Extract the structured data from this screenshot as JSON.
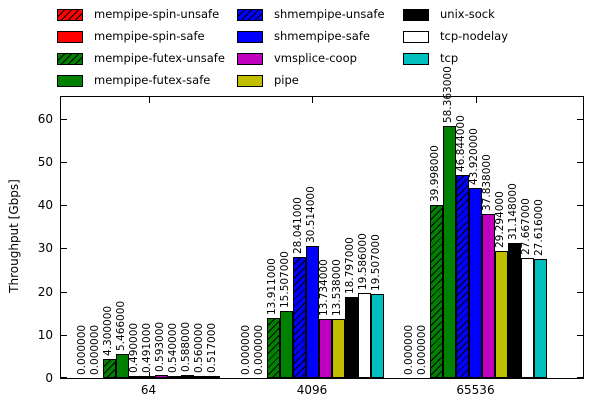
{
  "chart_data": {
    "type": "bar",
    "title": "",
    "xlabel": "",
    "ylabel": "Throughput [Gbps]",
    "categories": [
      "64",
      "4096",
      "65536"
    ],
    "ylim": [
      0,
      65
    ],
    "yticks": [
      0,
      10,
      20,
      30,
      40,
      50,
      60
    ],
    "grid": false,
    "legend_position": "top",
    "value_label_decimals": 6,
    "legend_columns": [
      4,
      4,
      3
    ],
    "series": [
      {
        "name": "mempipe-spin-unsafe",
        "color": "#ff0000",
        "hatch": true,
        "values": [
          0.0,
          0.0,
          0.0
        ]
      },
      {
        "name": "mempipe-spin-safe",
        "color": "#ff0000",
        "hatch": false,
        "values": [
          0.0,
          0.0,
          0.0
        ]
      },
      {
        "name": "mempipe-futex-unsafe",
        "color": "#008000",
        "hatch": true,
        "values": [
          4.3,
          13.911,
          39.998
        ]
      },
      {
        "name": "mempipe-futex-safe",
        "color": "#008000",
        "hatch": false,
        "values": [
          5.466,
          15.507,
          58.363
        ]
      },
      {
        "name": "shmempipe-unsafe",
        "color": "#0000ff",
        "hatch": true,
        "values": [
          0.49,
          28.041,
          46.844
        ]
      },
      {
        "name": "shmempipe-safe",
        "color": "#0000ff",
        "hatch": false,
        "values": [
          0.491,
          30.514,
          43.92
        ]
      },
      {
        "name": "vmsplice-coop",
        "color": "#bf00bf",
        "hatch": false,
        "values": [
          0.593,
          13.734,
          37.838
        ]
      },
      {
        "name": "pipe",
        "color": "#bfbf00",
        "hatch": false,
        "values": [
          0.54,
          13.538,
          29.294
        ]
      },
      {
        "name": "unix-sock",
        "color": "#000000",
        "hatch": false,
        "values": [
          0.588,
          18.797,
          31.148
        ]
      },
      {
        "name": "tcp-nodelay",
        "color": "#ffffff",
        "hatch": false,
        "values": [
          0.56,
          19.586,
          27.667
        ]
      },
      {
        "name": "tcp",
        "color": "#00bfbf",
        "hatch": false,
        "values": [
          0.517,
          19.507,
          27.616
        ]
      }
    ]
  }
}
